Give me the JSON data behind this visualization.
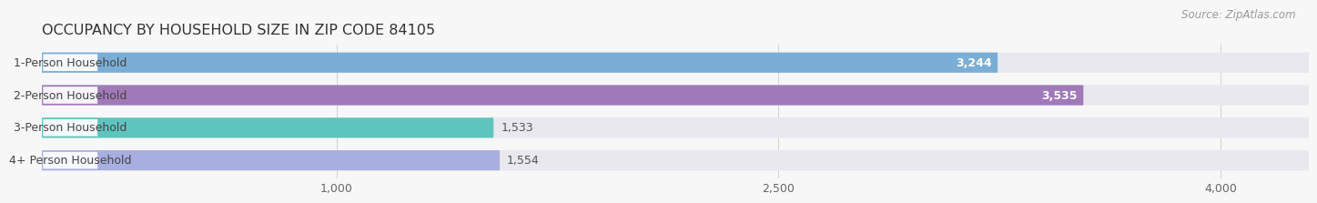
{
  "title": "OCCUPANCY BY HOUSEHOLD SIZE IN ZIP CODE 84105",
  "source": "Source: ZipAtlas.com",
  "categories": [
    "1-Person Household",
    "2-Person Household",
    "3-Person Household",
    "4+ Person Household"
  ],
  "values": [
    3244,
    3535,
    1533,
    1554
  ],
  "bar_colors": [
    "#7aaed6",
    "#a07ab8",
    "#5ec4be",
    "#a9aee0"
  ],
  "value_inside": [
    true,
    true,
    false,
    false
  ],
  "xlim_max": 4300,
  "xticks": [
    1000,
    2500,
    4000
  ],
  "bg_color": "#f7f7f8",
  "bar_bg_color": "#e8e8ee",
  "bar_bg_color2": "#f0f0f5",
  "title_fontsize": 11.5,
  "axis_fontsize": 9,
  "label_fontsize": 9,
  "value_fontsize": 9,
  "source_fontsize": 8.5
}
